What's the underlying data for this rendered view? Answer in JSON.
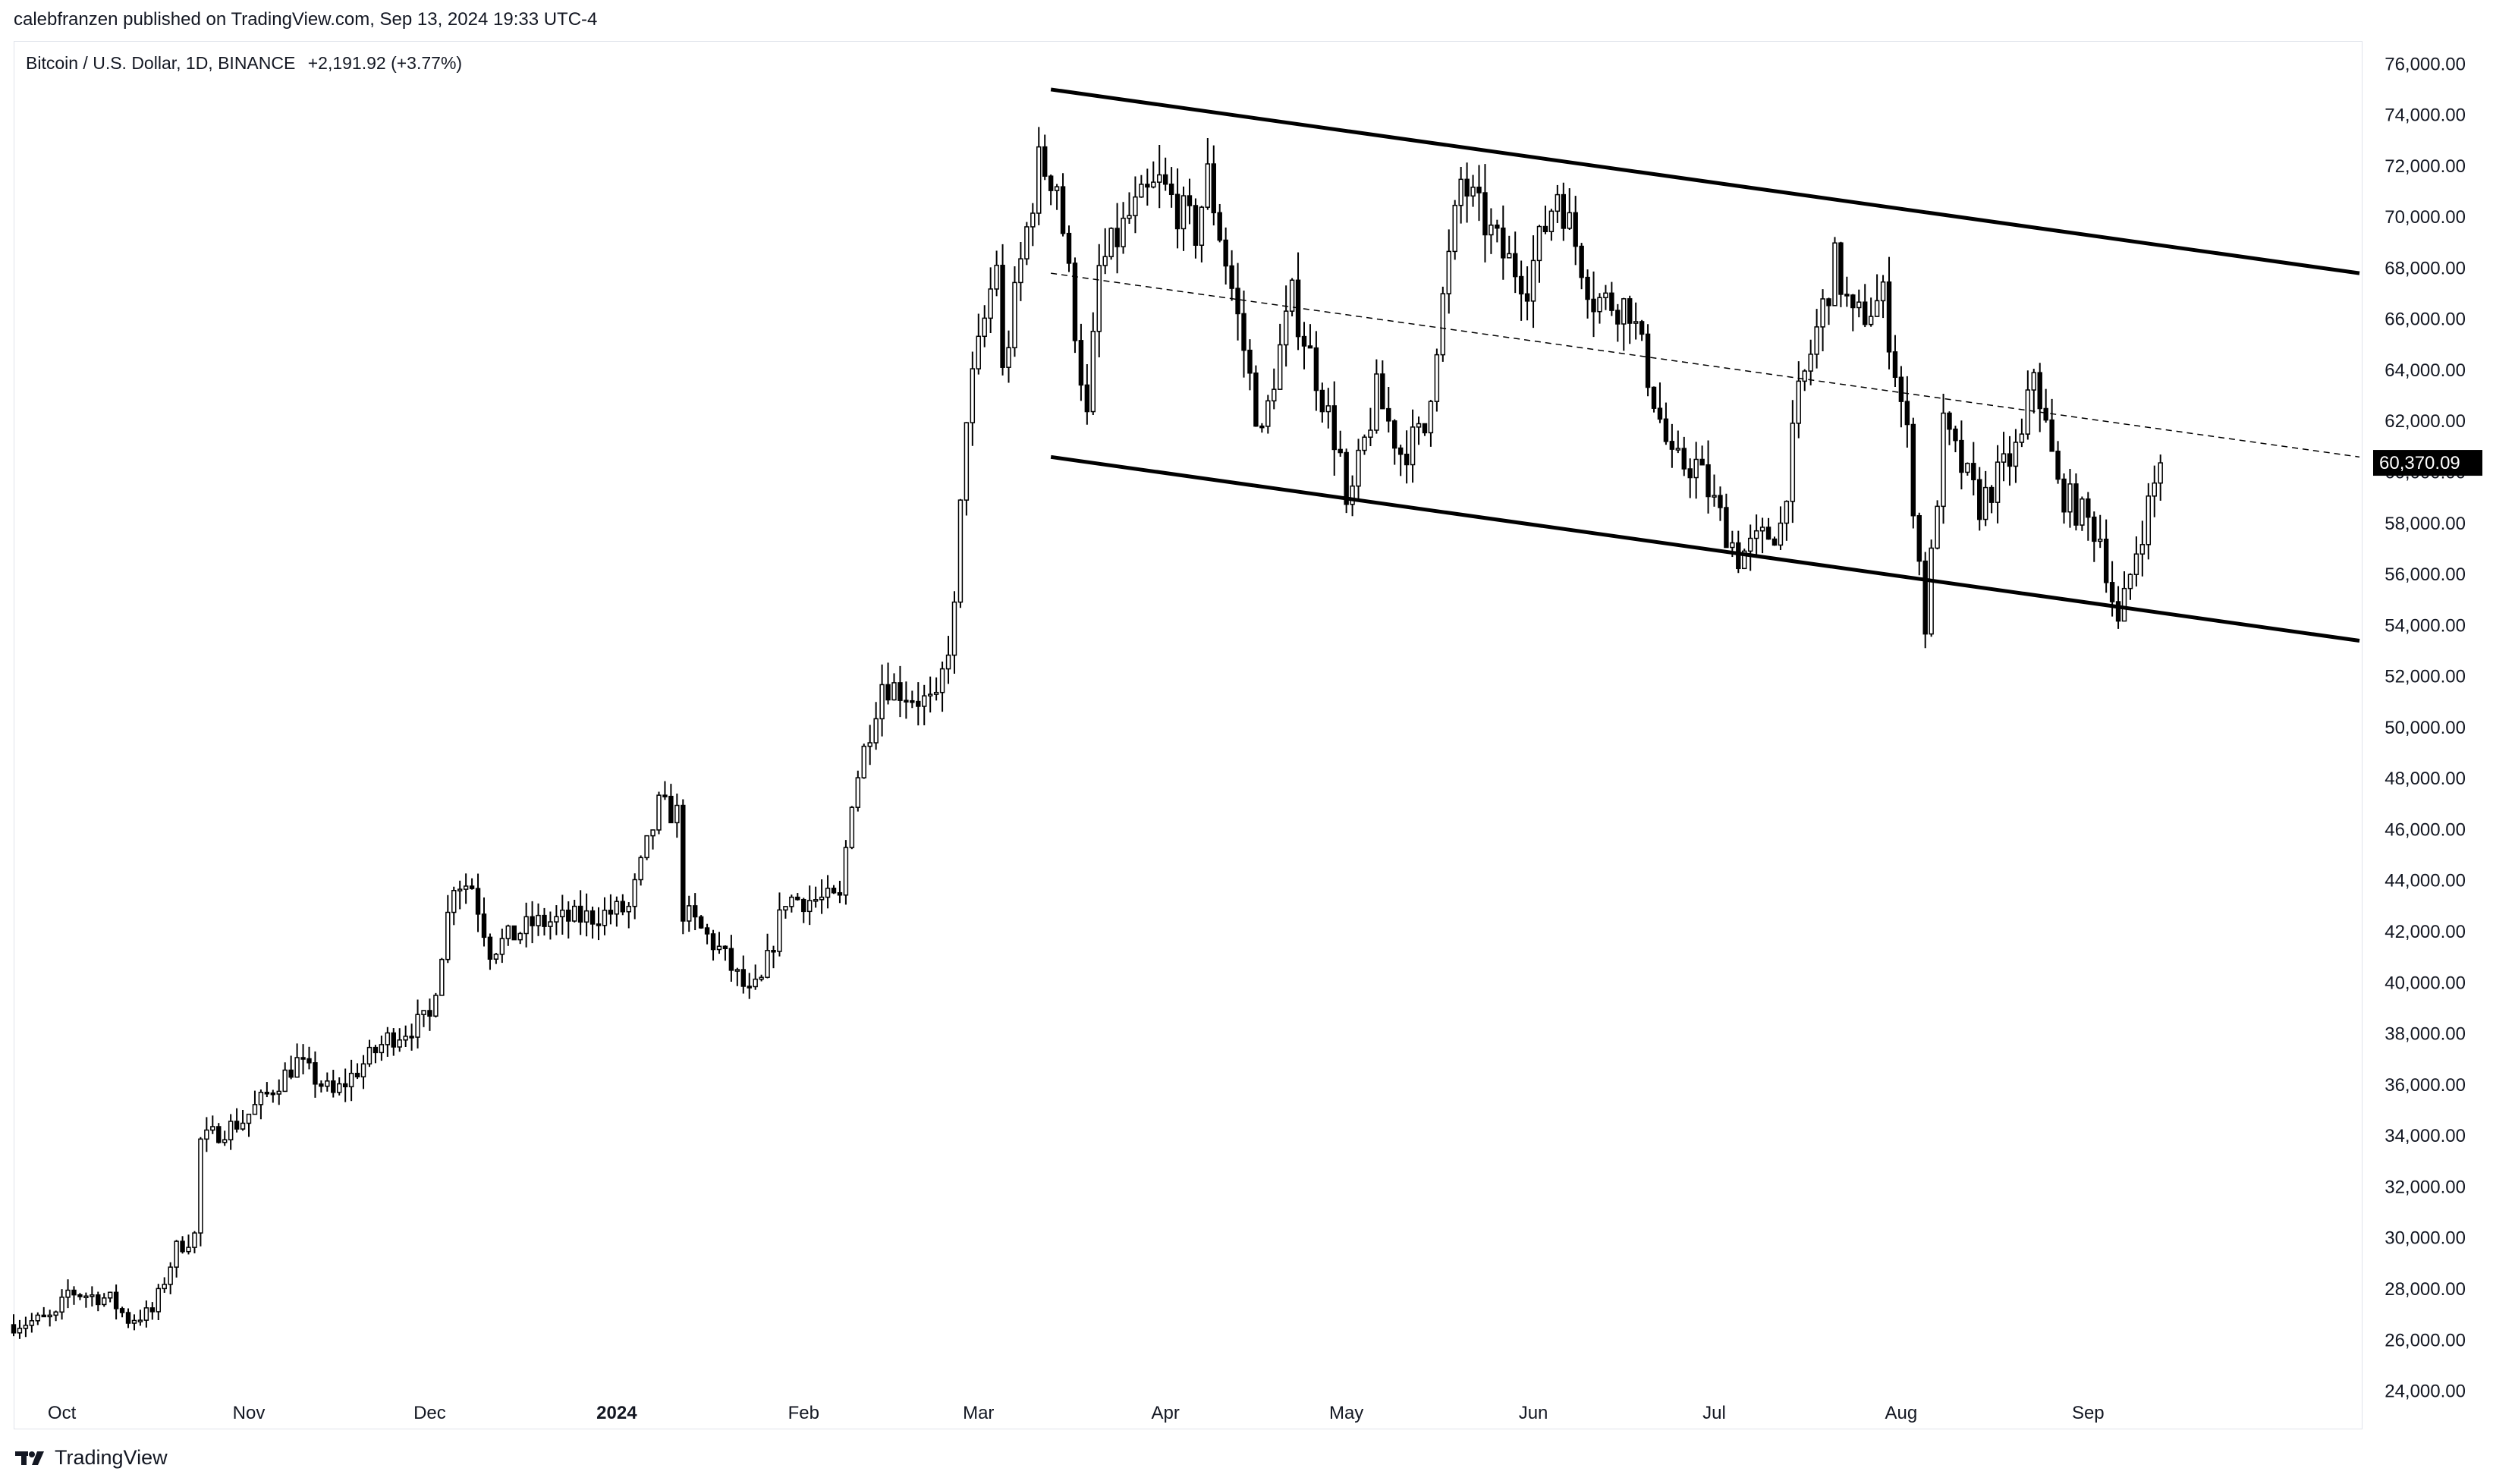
{
  "header": {
    "published": "calebfranzen published on TradingView.com, Sep 13, 2024 19:33 UTC-4"
  },
  "legend": {
    "symbol": "Bitcoin / U.S. Dollar, 1D, BINANCE",
    "change": "+2,191.92 (+3.77%)"
  },
  "footer": {
    "brand": "TradingView",
    "logo_icon": "tradingview-logo-icon"
  },
  "price_label": {
    "text": "60,370.09",
    "value": 60370.09
  },
  "colors": {
    "candle_up": "#ffffff",
    "candle_down": "#000000",
    "wick": "#000000",
    "price_tag_bg": "#000000",
    "text": "#131722",
    "border": "#e0e3eb"
  },
  "chart_data": {
    "type": "candlestick",
    "title": "Bitcoin / U.S. Dollar, 1D, BINANCE",
    "ylim": [
      22500,
      76900
    ],
    "y_ticks": [
      76000,
      74000,
      72000,
      70000,
      68000,
      66000,
      64000,
      62000,
      60000,
      58000,
      56000,
      54000,
      52000,
      50000,
      48000,
      46000,
      44000,
      42000,
      40000,
      38000,
      36000,
      34000,
      32000,
      30000,
      28000,
      26000,
      24000
    ],
    "y_tick_labels": [
      "76,000.00",
      "74,000.00",
      "72,000.00",
      "70,000.00",
      "68,000.00",
      "66,000.00",
      "64,000.00",
      "62,000.00",
      "60,000.00",
      "58,000.00",
      "56,000.00",
      "54,000.00",
      "52,000.00",
      "50,000.00",
      "48,000.00",
      "46,000.00",
      "44,000.00",
      "42,000.00",
      "40,000.00",
      "38,000.00",
      "36,000.00",
      "34,000.00",
      "32,000.00",
      "30,000.00",
      "28,000.00",
      "26,000.00",
      "24,000.00"
    ],
    "x_domain": [
      "2023-09-23",
      "2024-10-16"
    ],
    "x_ticks": [
      {
        "date": "2023-10-01",
        "label": "Oct",
        "bold": false
      },
      {
        "date": "2023-11-01",
        "label": "Nov",
        "bold": false
      },
      {
        "date": "2023-12-01",
        "label": "Dec",
        "bold": false
      },
      {
        "date": "2024-01-01",
        "label": "2024",
        "bold": true
      },
      {
        "date": "2024-02-01",
        "label": "Feb",
        "bold": false
      },
      {
        "date": "2024-03-01",
        "label": "Mar",
        "bold": false
      },
      {
        "date": "2024-04-01",
        "label": "Apr",
        "bold": false
      },
      {
        "date": "2024-05-01",
        "label": "May",
        "bold": false
      },
      {
        "date": "2024-06-01",
        "label": "Jun",
        "bold": false
      },
      {
        "date": "2024-07-01",
        "label": "Jul",
        "bold": false
      },
      {
        "date": "2024-08-01",
        "label": "Aug",
        "bold": false
      },
      {
        "date": "2024-09-01",
        "label": "Sep",
        "bold": false
      }
    ],
    "series_close_anchors": [
      [
        "2023-09-23",
        26600
      ],
      [
        "2023-09-30",
        26900
      ],
      [
        "2023-10-02",
        27900
      ],
      [
        "2023-10-09",
        27600
      ],
      [
        "2023-10-12",
        26800
      ],
      [
        "2023-10-16",
        27100
      ],
      [
        "2023-10-20",
        29600
      ],
      [
        "2023-10-23",
        30100
      ],
      [
        "2023-10-24",
        33800
      ],
      [
        "2023-10-31",
        34600
      ],
      [
        "2023-11-09",
        36900
      ],
      [
        "2023-11-15",
        35600
      ],
      [
        "2023-11-24",
        37800
      ],
      [
        "2023-12-01",
        38600
      ],
      [
        "2023-12-05",
        44000
      ],
      [
        "2023-12-08",
        43800
      ],
      [
        "2023-12-11",
        41300
      ],
      [
        "2023-12-18",
        42300
      ],
      [
        "2023-12-28",
        42600
      ],
      [
        "2024-01-03",
        42900
      ],
      [
        "2024-01-08",
        46900
      ],
      [
        "2024-01-11",
        46600
      ],
      [
        "2024-01-12",
        42800
      ],
      [
        "2024-01-18",
        41300
      ],
      [
        "2024-01-23",
        39500
      ],
      [
        "2024-01-25",
        40000
      ],
      [
        "2024-01-29",
        43300
      ],
      [
        "2024-02-07",
        43200
      ],
      [
        "2024-02-09",
        47300
      ],
      [
        "2024-02-14",
        51800
      ],
      [
        "2024-02-23",
        50800
      ],
      [
        "2024-02-26",
        54500
      ],
      [
        "2024-02-28",
        62400
      ],
      [
        "2024-03-04",
        68300
      ],
      [
        "2024-03-05",
        63800
      ],
      [
        "2024-03-08",
        68200
      ],
      [
        "2024-03-11",
        72100
      ],
      [
        "2024-03-14",
        71400
      ],
      [
        "2024-03-19",
        62000
      ],
      [
        "2024-03-21",
        67900
      ],
      [
        "2024-03-26",
        70000
      ],
      [
        "2024-03-31",
        71300
      ],
      [
        "2024-04-06",
        69400
      ],
      [
        "2024-04-08",
        71600
      ],
      [
        "2024-04-12",
        67200
      ],
      [
        "2024-04-17",
        61300
      ],
      [
        "2024-04-19",
        63800
      ],
      [
        "2024-04-22",
        66800
      ],
      [
        "2024-04-26",
        63800
      ],
      [
        "2024-04-30",
        60600
      ],
      [
        "2024-05-01",
        58200
      ],
      [
        "2024-05-06",
        63100
      ],
      [
        "2024-05-10",
        60800
      ],
      [
        "2024-05-14",
        61600
      ],
      [
        "2024-05-16",
        65200
      ],
      [
        "2024-05-20",
        71400
      ],
      [
        "2024-05-27",
        68500
      ],
      [
        "2024-05-31",
        67500
      ],
      [
        "2024-06-05",
        71100
      ],
      [
        "2024-06-11",
        66800
      ],
      [
        "2024-06-17",
        66500
      ],
      [
        "2024-06-24",
        60300
      ],
      [
        "2024-06-28",
        60300
      ],
      [
        "2024-07-05",
        56700
      ],
      [
        "2024-07-12",
        57900
      ],
      [
        "2024-07-15",
        62900
      ],
      [
        "2024-07-21",
        68200
      ],
      [
        "2024-07-24",
        65900
      ],
      [
        "2024-07-29",
        66800
      ],
      [
        "2024-08-02",
        61400
      ],
      [
        "2024-08-05",
        54000
      ],
      [
        "2024-08-08",
        61700
      ],
      [
        "2024-08-14",
        58700
      ],
      [
        "2024-08-21",
        61200
      ],
      [
        "2024-08-23",
        64100
      ],
      [
        "2024-08-27",
        59400
      ],
      [
        "2024-09-03",
        57500
      ],
      [
        "2024-09-06",
        53900
      ],
      [
        "2024-09-09",
        57000
      ],
      [
        "2024-09-13",
        60370
      ]
    ],
    "trendlines": [
      {
        "name": "channel-upper",
        "style": "solid",
        "from": [
          "2024-03-13",
          75000
        ],
        "to": [
          "2024-10-16",
          67800
        ]
      },
      {
        "name": "channel-lower",
        "style": "solid",
        "from": [
          "2024-03-13",
          60600
        ],
        "to": [
          "2024-10-16",
          53400
        ]
      },
      {
        "name": "channel-mid",
        "style": "dashed",
        "from": [
          "2024-03-13",
          67800
        ],
        "to": [
          "2024-10-16",
          60600
        ]
      }
    ],
    "grid": false,
    "legend_position": "top-left"
  }
}
